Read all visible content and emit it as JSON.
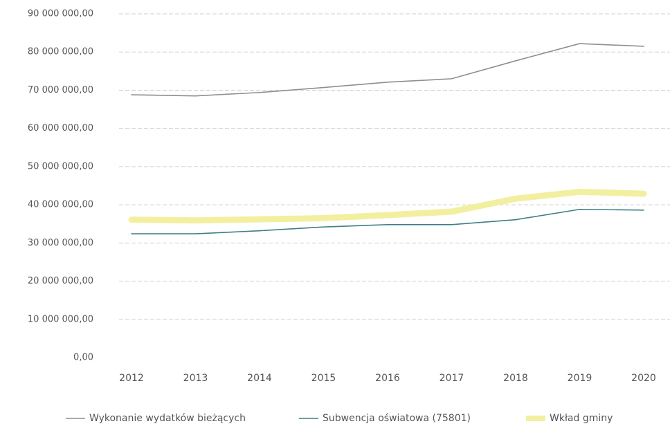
{
  "chart_data": {
    "type": "line",
    "categories": [
      "2012",
      "2013",
      "2014",
      "2015",
      "2016",
      "2017",
      "2018",
      "2019",
      "2020"
    ],
    "series": [
      {
        "name": "Wykonanie wydatków bieżących",
        "color": "#8a8f94",
        "values": [
          68.8,
          68.5,
          69.4,
          70.7,
          72.1,
          73.0,
          77.7,
          82.2,
          81.5
        ]
      },
      {
        "name": "Subwencja oświatowa (75801)",
        "color": "#3e7f86",
        "values": [
          32.4,
          32.4,
          33.2,
          34.2,
          34.8,
          34.8,
          36.1,
          38.8,
          38.6
        ]
      },
      {
        "name": "Wkład gminy",
        "color": "#f2f0a0",
        "values": [
          36.1,
          35.9,
          36.2,
          36.5,
          37.3,
          38.2,
          41.6,
          43.4,
          42.9
        ]
      }
    ],
    "ylim": [
      0,
      90
    ],
    "yticks": [
      {
        "value": 0,
        "label": "0,00"
      },
      {
        "value": 10,
        "label": "10 000 000,00"
      },
      {
        "value": 20,
        "label": "20 000 000,00"
      },
      {
        "value": 30,
        "label": "30 000 000,00"
      },
      {
        "value": 40,
        "label": "40 000 000,00"
      },
      {
        "value": 50,
        "label": "50 000 000,00"
      },
      {
        "value": 60,
        "label": "60 000 000,00"
      },
      {
        "value": 70,
        "label": "70 000 000,00"
      },
      {
        "value": 80,
        "label": "80 000 000,00"
      },
      {
        "value": 90,
        "label": "90 000 000,00"
      }
    ],
    "grid": true
  }
}
